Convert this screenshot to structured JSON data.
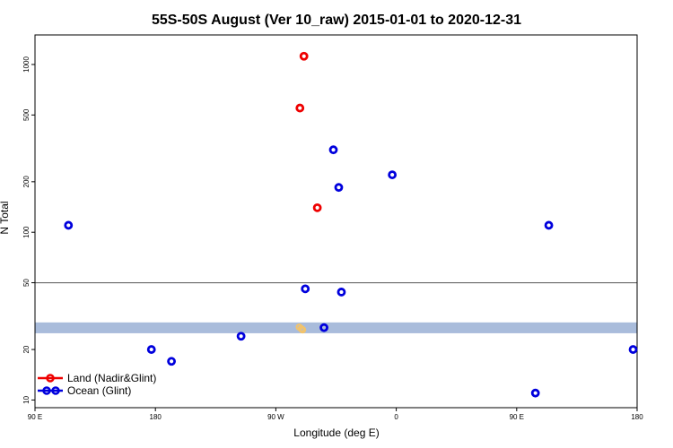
{
  "chart_data": {
    "type": "scatter",
    "title": "55S-50S August (Ver 10_raw)   2015-01-01 to 2020-12-31",
    "xlabel": "Longitude (deg E)",
    "ylabel": "N Total",
    "x_axis": {
      "min": 90,
      "max": 540,
      "ticks": [
        {
          "value": 90,
          "label": "90 E"
        },
        {
          "value": 180,
          "label": "180"
        },
        {
          "value": 270,
          "label": "90 W"
        },
        {
          "value": 360,
          "label": "0"
        },
        {
          "value": 450,
          "label": "90 E"
        },
        {
          "value": 540,
          "label": "180"
        }
      ]
    },
    "y_axis": {
      "scale": "log",
      "min": 9,
      "max": 1500,
      "ticks": [
        10,
        20,
        50,
        100,
        200,
        500,
        1000
      ]
    },
    "reference_line": {
      "y": 50,
      "color": "#555555"
    },
    "band": {
      "y_min": 25,
      "y_max": 29,
      "color": "#a9bcdb"
    },
    "series": [
      {
        "name": "Land (Nadir&Glint)",
        "color": "#ee0000",
        "points": [
          {
            "x": 291,
            "y": 1120
          },
          {
            "x": 288,
            "y": 550
          },
          {
            "x": 301,
            "y": 140
          }
        ]
      },
      {
        "name": "Ocean (Glint)",
        "color": "#0000dd",
        "points": [
          {
            "x": 115,
            "y": 110
          },
          {
            "x": 177,
            "y": 20
          },
          {
            "x": 192,
            "y": 17
          },
          {
            "x": 244,
            "y": 24
          },
          {
            "x": 292,
            "y": 46
          },
          {
            "x": 306,
            "y": 27
          },
          {
            "x": 313,
            "y": 310
          },
          {
            "x": 317,
            "y": 185
          },
          {
            "x": 319,
            "y": 44
          },
          {
            "x": 357,
            "y": 220
          },
          {
            "x": 464,
            "y": 11
          },
          {
            "x": 474,
            "y": 110
          },
          {
            "x": 537,
            "y": 20
          }
        ]
      }
    ],
    "faint_points": {
      "color": "#f2c36b",
      "points": [
        {
          "x": 287.5,
          "y": 27.2
        },
        {
          "x": 289,
          "y": 26.6
        },
        {
          "x": 290,
          "y": 26.2
        }
      ]
    },
    "legend": {
      "placement": "bottom-left"
    },
    "grid": false
  }
}
